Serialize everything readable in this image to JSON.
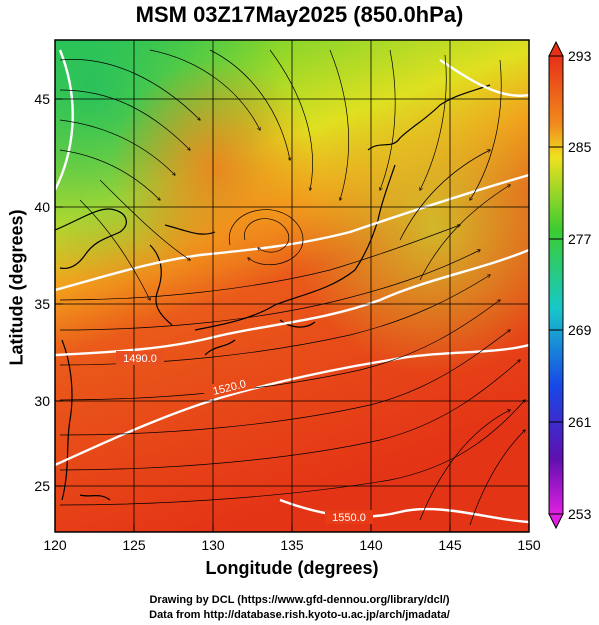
{
  "title": "MSM 03Z17May2025 (850.0hPa)",
  "x_axis": {
    "label": "Longitude (degrees)",
    "ticks": [
      "120",
      "125",
      "130",
      "135",
      "140",
      "145",
      "150"
    ]
  },
  "y_axis": {
    "label": "Latitude  (degrees)",
    "ticks": [
      "25",
      "30",
      "35",
      "40",
      "45"
    ]
  },
  "colorbar": {
    "ticks": [
      "293",
      "285",
      "277",
      "269",
      "261",
      "253"
    ]
  },
  "contours": [
    "1490.0",
    "1520.0",
    "1550.0"
  ],
  "credits": {
    "line1": "Drawing by DCL (https://www.gfd-dennou.org/library/dcl/)",
    "line2": "Data from http://database.rish.kyoto-u.ac.jp/arch/jmadata/"
  },
  "colors": {
    "warm": "#e8501a",
    "mid": "#c8e020",
    "cool": "#30c840",
    "contour": "#ffffff"
  }
}
